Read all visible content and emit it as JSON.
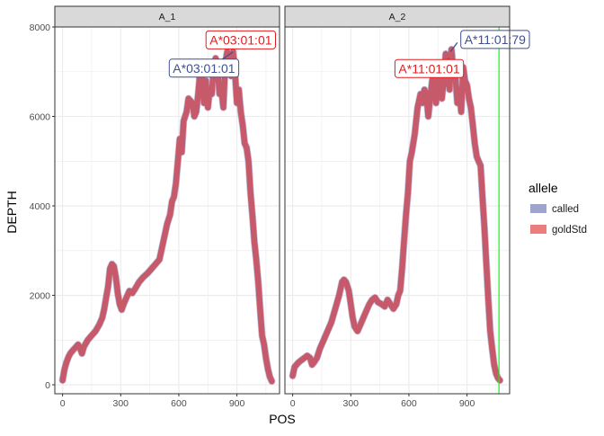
{
  "chart_data": {
    "type": "line",
    "xlabel": "POS",
    "ylabel": "DEPTH",
    "xlim": [
      -40,
      1120
    ],
    "ylim": [
      -200,
      8000
    ],
    "x_ticks": [
      0,
      300,
      600,
      900
    ],
    "y_ticks": [
      0,
      2000,
      4000,
      6000,
      8000
    ],
    "grid": true,
    "legend": {
      "title": "allele",
      "position": "right",
      "entries": [
        {
          "name": "called",
          "color": "#9CA4CF"
        },
        {
          "name": "goldStd",
          "color": "#EC7D7D"
        }
      ]
    },
    "colors": {
      "called": "#3F4F91",
      "goldStd": "#E31A1C",
      "overlap": "#C8505F",
      "vline": "#00FF00",
      "strip_bg": "#D9D9D9",
      "grid": "#EBEBEB"
    },
    "panels": [
      {
        "strip": "A_1",
        "labels": [
          {
            "text": "A*03:01:01",
            "series": "goldStd",
            "x": 920,
            "y": 7710
          },
          {
            "text": "A*03:01:01",
            "series": "called",
            "x": 730,
            "y": 7080
          }
        ],
        "label_pointers": [
          {
            "series": "called",
            "x1": 815,
            "y1": 7250,
            "x2": 880,
            "y2": 7440
          },
          {
            "series": "goldStd",
            "x1": 900,
            "y1": 7500,
            "x2": 900,
            "y2": 7650
          }
        ],
        "vline": null,
        "series": [
          {
            "name": "combined",
            "x": [
              0,
              10,
              20,
              30,
              40,
              55,
              70,
              80,
              90,
              100,
              110,
              130,
              150,
              170,
              190,
              205,
              215,
              225,
              235,
              245,
              255,
              265,
              275,
              285,
              295,
              305,
              315,
              330,
              345,
              360,
              375,
              395,
              415,
              440,
              460,
              480,
              500,
              520,
              540,
              555,
              565,
              575,
              585,
              595,
              605,
              615,
              625,
              640,
              650,
              660,
              670,
              680,
              690,
              700,
              710,
              720,
              730,
              740,
              750,
              760,
              770,
              780,
              790,
              800,
              810,
              820,
              830,
              840,
              850,
              860,
              870,
              880,
              890,
              900,
              910,
              920,
              930,
              940,
              950,
              960,
              970,
              980,
              990,
              1000,
              1010,
              1020,
              1030,
              1040,
              1050,
              1060,
              1070,
              1080
            ],
            "y": [
              100,
              350,
              500,
              620,
              700,
              780,
              850,
              900,
              820,
              700,
              850,
              1000,
              1100,
              1200,
              1350,
              1500,
              1700,
              1950,
              2200,
              2600,
              2700,
              2650,
              2400,
              2050,
              1800,
              1680,
              1800,
              1950,
              2100,
              2050,
              2150,
              2300,
              2400,
              2500,
              2600,
              2700,
              2800,
              3200,
              3600,
              3800,
              4100,
              4200,
              4500,
              5000,
              5500,
              5200,
              5900,
              6100,
              6400,
              6350,
              6300,
              6000,
              6100,
              6500,
              7000,
              6900,
              6300,
              6800,
              6200,
              6600,
              6500,
              7100,
              7300,
              7100,
              6500,
              6600,
              6200,
              7200,
              7450,
              7300,
              6900,
              7450,
              7000,
              6300,
              6600,
              6100,
              5800,
              5400,
              5300,
              5000,
              4300,
              3800,
              3200,
              2800,
              2300,
              1700,
              1100,
              900,
              600,
              350,
              180,
              80
            ]
          }
        ]
      },
      {
        "strip": "A_2",
        "labels": [
          {
            "text": "A*11:01:79",
            "series": "called",
            "x": 1045,
            "y": 7720
          },
          {
            "text": "A*11:01:01",
            "series": "goldStd",
            "x": 705,
            "y": 7070
          }
        ],
        "label_pointers": [
          {
            "series": "called",
            "x1": 815,
            "y1": 7450,
            "x2": 850,
            "y2": 7650
          },
          {
            "series": "goldStd",
            "x1": 790,
            "y1": 7100,
            "x2": 805,
            "y2": 7300
          }
        ],
        "vline": 1065,
        "series": [
          {
            "name": "combined",
            "x": [
              0,
              10,
              20,
              30,
              45,
              60,
              75,
              90,
              100,
              110,
              125,
              140,
              160,
              180,
              200,
              220,
              240,
              255,
              265,
              275,
              290,
              300,
              310,
              320,
              335,
              350,
              365,
              380,
              395,
              410,
              425,
              440,
              460,
              475,
              490,
              505,
              520,
              535,
              545,
              555,
              565,
              575,
              585,
              595,
              605,
              615,
              630,
              645,
              660,
              670,
              680,
              690,
              700,
              710,
              720,
              730,
              740,
              750,
              760,
              770,
              780,
              790,
              800,
              810,
              820,
              830,
              840,
              850,
              860,
              870,
              880,
              890,
              900,
              910,
              920,
              930,
              940,
              950,
              960,
              970,
              980,
              990,
              1000,
              1010,
              1020,
              1030,
              1040,
              1050,
              1060,
              1070
            ],
            "y": [
              200,
              400,
              450,
              500,
              550,
              600,
              650,
              600,
              450,
              500,
              600,
              800,
              1000,
              1200,
              1400,
              1700,
              2000,
              2300,
              2350,
              2300,
              2100,
              1800,
              1500,
              1300,
              1200,
              1350,
              1500,
              1650,
              1800,
              1900,
              1950,
              1850,
              1800,
              1750,
              1900,
              1800,
              1700,
              1800,
              2000,
              2100,
              2600,
              3200,
              3800,
              4300,
              5000,
              5200,
              5600,
              6200,
              6500,
              6300,
              6600,
              6500,
              6000,
              6400,
              6800,
              7000,
              6300,
              6700,
              7200,
              6400,
              6800,
              7400,
              6900,
              6600,
              7500,
              7000,
              6900,
              6300,
              6600,
              6100,
              7100,
              6800,
              6700,
              6400,
              6200,
              5800,
              5400,
              5100,
              5000,
              4900,
              4200,
              3500,
              2700,
              1900,
              1200,
              800,
              450,
              250,
              150,
              100
            ]
          }
        ]
      }
    ]
  }
}
